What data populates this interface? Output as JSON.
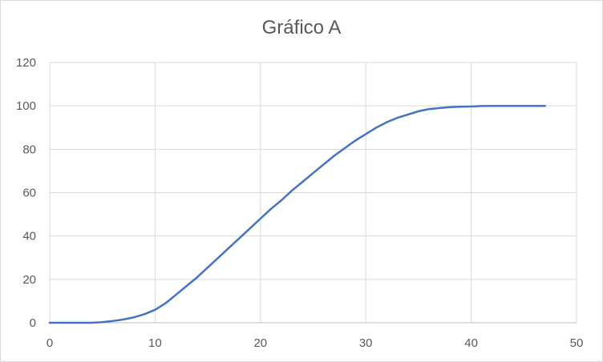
{
  "chart_data": {
    "type": "line",
    "title": "Gráfico A",
    "xlabel": "",
    "ylabel": "",
    "xlim": [
      0,
      50
    ],
    "ylim": [
      0,
      120
    ],
    "x_ticks": [
      0,
      10,
      20,
      30,
      40,
      50
    ],
    "y_ticks": [
      0,
      20,
      40,
      60,
      80,
      100,
      120
    ],
    "grid": true,
    "legend": "none",
    "series": [
      {
        "color": "#4472c4",
        "x": [
          0,
          2,
          4,
          5,
          6,
          7,
          8,
          9,
          10,
          11,
          12,
          13,
          14,
          15,
          16,
          17,
          18,
          19,
          20,
          21,
          22,
          23,
          24,
          25,
          26,
          27,
          28,
          29,
          30,
          31,
          32,
          33,
          34,
          35,
          36,
          37,
          38,
          39,
          40,
          41,
          42,
          43,
          44,
          45,
          46,
          47
        ],
        "y": [
          0,
          0,
          0,
          0.3,
          0.8,
          1.5,
          2.5,
          4,
          6,
          9,
          13,
          17,
          21,
          25.5,
          30,
          34.5,
          39,
          43.5,
          48,
          52.5,
          56.5,
          61,
          65,
          69,
          73,
          77,
          80.5,
          84,
          87,
          90,
          92.5,
          94.5,
          96,
          97.5,
          98.5,
          99,
          99.4,
          99.6,
          99.7,
          99.9,
          100,
          100,
          100,
          100,
          100,
          100
        ]
      }
    ]
  }
}
